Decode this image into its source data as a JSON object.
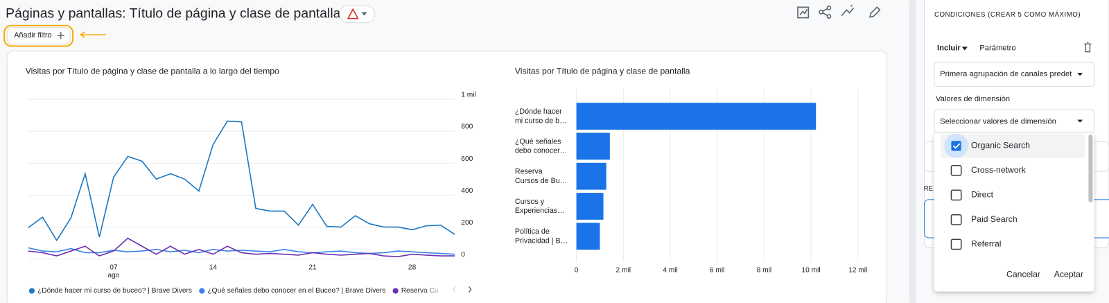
{
  "header": {
    "title": "Páginas y pantallas: Título de página y clase de pantalla",
    "add_filter": "Añadir filtro"
  },
  "chart_data": [
    {
      "type": "line",
      "title": "Visitas por Título de página y clase de pantalla a lo largo del tiempo",
      "categories": [
        null,
        null,
        null,
        null,
        null,
        null,
        "07",
        null,
        null,
        null,
        null,
        null,
        null,
        "14",
        null,
        null,
        null,
        null,
        null,
        null,
        "21",
        null,
        null,
        null,
        null,
        null,
        null,
        "28",
        null,
        null,
        null
      ],
      "month_label": "ago",
      "series": [
        {
          "name": "¿Dónde hacer mi curso de buceo? | Brave Divers",
          "color": "#1e78c2",
          "values": [
            196,
            262,
            117,
            258,
            533,
            137,
            512,
            642,
            612,
            500,
            533,
            500,
            425,
            717,
            862,
            858,
            317,
            300,
            300,
            212,
            342,
            204,
            200,
            271,
            221,
            200,
            200,
            183,
            208,
            212,
            154
          ]
        },
        {
          "name": "¿Qué señales debo conocer en el Buceo? | Brave Divers",
          "color": "#3b82e8",
          "values": [
            70,
            50,
            45,
            65,
            40,
            40,
            55,
            45,
            50,
            60,
            45,
            55,
            40,
            60,
            50,
            55,
            50,
            45,
            60,
            45,
            40,
            45,
            50,
            40,
            35,
            40,
            50,
            45,
            40,
            35,
            30
          ]
        },
        {
          "name": "Reserva Cu",
          "color": "#6a2fb0",
          "values": [
            50,
            40,
            20,
            50,
            80,
            20,
            50,
            130,
            80,
            30,
            80,
            30,
            60,
            30,
            80,
            40,
            30,
            35,
            30,
            25,
            40,
            30,
            25,
            30,
            35,
            20,
            15,
            30,
            25,
            20,
            20
          ]
        }
      ],
      "ylim": [
        0,
        1000
      ],
      "yticks": [
        0,
        200,
        400,
        600,
        800,
        {
          "value": 1000,
          "label": "1 mil"
        }
      ],
      "grid": true
    },
    {
      "type": "bar",
      "orientation": "horizontal",
      "title": "Visitas por Título de página y clase de pantalla",
      "categories": [
        "¿Dónde hacer\nmi curso de b…",
        "¿Qué señales\ndebo conocer…",
        "Reserva\nCursos de Bu…",
        "Cursos y\nExperiencias…",
        "Política de\nPrivacidad | B…"
      ],
      "values": [
        10212,
        1424,
        1273,
        1150,
        1000
      ],
      "color": "#1a73e8",
      "xlim": [
        0,
        12000
      ],
      "xticks": [
        0,
        {
          "value": 2000,
          "label": "2 mil"
        },
        {
          "value": 4000,
          "label": "4 mil"
        },
        {
          "value": 6000,
          "label": "6 mil"
        },
        {
          "value": 8000,
          "label": "8 mil"
        },
        {
          "value": 10000,
          "label": "10 mil"
        },
        {
          "value": 12000,
          "label": "12 mil"
        }
      ],
      "grid": true
    }
  ],
  "panel": {
    "heading": "CONDICIONES (CREAR 5 COMO MÁXIMO)",
    "include": "Incluir",
    "parameter": "Parámetro",
    "dimension": "Primera agrupación de canales predet",
    "values_label": "Valores de dimensión",
    "values_placeholder": "Seleccionar valores de dimensión",
    "hidden_label": "RE",
    "options": [
      {
        "label": "Organic Search",
        "checked": true
      },
      {
        "label": "Cross-network",
        "checked": false
      },
      {
        "label": "Direct",
        "checked": false
      },
      {
        "label": "Paid Search",
        "checked": false
      },
      {
        "label": "Referral",
        "checked": false
      }
    ],
    "cancel": "Cancelar",
    "accept": "Aceptar"
  }
}
